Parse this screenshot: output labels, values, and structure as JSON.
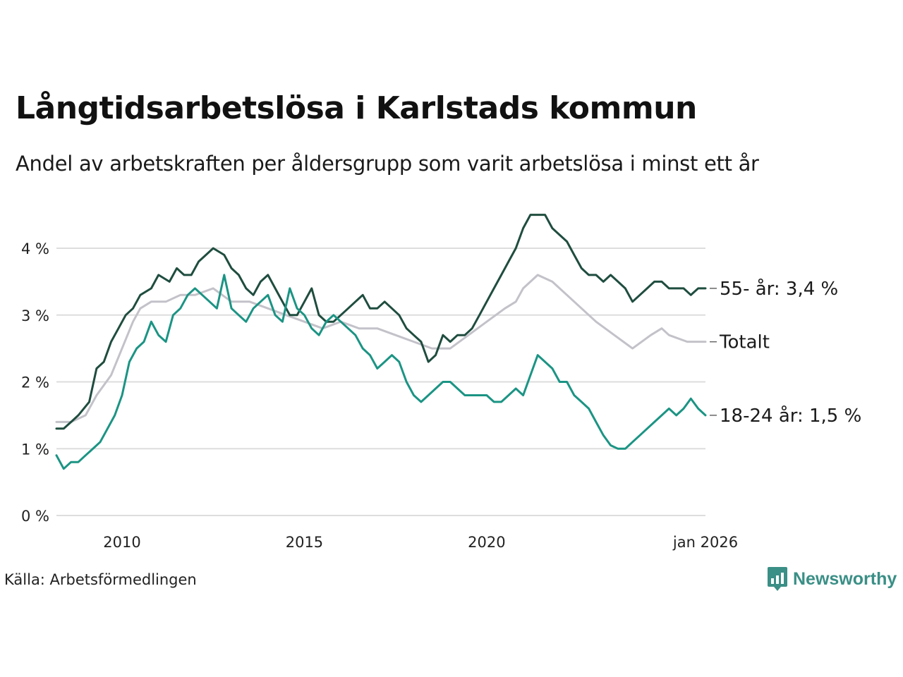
{
  "header": {
    "title": "Långtidsarbetslösa i Karlstads kommun",
    "subtitle": "Andel av arbetskraften per åldersgrupp som varit arbetslösa i minst ett år"
  },
  "footer": {
    "source": "Källa: Arbetsförmedlingen",
    "brand": "Newsworthy"
  },
  "colors": {
    "senior": "#1f4d3f",
    "total": "#c3c2c9",
    "youth": "#1b9484",
    "grid": "#dddddd",
    "brand": "#3a8f86"
  },
  "chart_data": {
    "type": "line",
    "title": "Långtidsarbetslösa i Karlstads kommun",
    "subtitle": "Andel av arbetskraften per åldersgrupp som varit arbetslösa i minst ett år",
    "xlabel": "",
    "ylabel": "",
    "ylim": [
      0,
      4.6
    ],
    "xlim": [
      2008.2,
      2026.0
    ],
    "grid": true,
    "yticks": [
      {
        "value": 0,
        "label": "0 %"
      },
      {
        "value": 1,
        "label": "1 %"
      },
      {
        "value": 2,
        "label": "2 %"
      },
      {
        "value": 3,
        "label": "3 %"
      },
      {
        "value": 4,
        "label": "4 %"
      }
    ],
    "xticks": [
      {
        "value": 2010,
        "label": "2010"
      },
      {
        "value": 2015,
        "label": "2015"
      },
      {
        "value": 2020,
        "label": "2020"
      },
      {
        "value": 2026.0,
        "label": "jan 2026"
      }
    ],
    "series": [
      {
        "name": "Totalt",
        "label": "Totalt",
        "color_key": "total",
        "points": [
          [
            2008.2,
            1.4
          ],
          [
            2008.6,
            1.4
          ],
          [
            2009.0,
            1.5
          ],
          [
            2009.3,
            1.8
          ],
          [
            2009.7,
            2.1
          ],
          [
            2010.0,
            2.5
          ],
          [
            2010.3,
            2.9
          ],
          [
            2010.5,
            3.1
          ],
          [
            2010.8,
            3.2
          ],
          [
            2011.2,
            3.2
          ],
          [
            2011.6,
            3.3
          ],
          [
            2012.0,
            3.3
          ],
          [
            2012.5,
            3.4
          ],
          [
            2013.0,
            3.2
          ],
          [
            2013.5,
            3.2
          ],
          [
            2014.0,
            3.1
          ],
          [
            2014.5,
            3.0
          ],
          [
            2015.0,
            2.9
          ],
          [
            2015.5,
            2.8
          ],
          [
            2016.0,
            2.9
          ],
          [
            2016.5,
            2.8
          ],
          [
            2017.0,
            2.8
          ],
          [
            2017.5,
            2.7
          ],
          [
            2018.0,
            2.6
          ],
          [
            2018.5,
            2.5
          ],
          [
            2019.0,
            2.5
          ],
          [
            2019.5,
            2.7
          ],
          [
            2020.0,
            2.9
          ],
          [
            2020.5,
            3.1
          ],
          [
            2020.8,
            3.2
          ],
          [
            2021.0,
            3.4
          ],
          [
            2021.4,
            3.6
          ],
          [
            2021.8,
            3.5
          ],
          [
            2022.2,
            3.3
          ],
          [
            2022.6,
            3.1
          ],
          [
            2023.0,
            2.9
          ],
          [
            2023.5,
            2.7
          ],
          [
            2024.0,
            2.5
          ],
          [
            2024.5,
            2.7
          ],
          [
            2024.8,
            2.8
          ],
          [
            2025.0,
            2.7
          ],
          [
            2025.5,
            2.6
          ],
          [
            2025.9,
            2.6
          ],
          [
            2026.0,
            2.6
          ]
        ]
      },
      {
        "name": "55- år",
        "label": "55- år: 3,4 %",
        "color_key": "senior",
        "points": [
          [
            2008.2,
            1.3
          ],
          [
            2008.4,
            1.3
          ],
          [
            2008.6,
            1.4
          ],
          [
            2008.8,
            1.5
          ],
          [
            2009.1,
            1.7
          ],
          [
            2009.3,
            2.2
          ],
          [
            2009.5,
            2.3
          ],
          [
            2009.7,
            2.6
          ],
          [
            2009.9,
            2.8
          ],
          [
            2010.1,
            3.0
          ],
          [
            2010.3,
            3.1
          ],
          [
            2010.5,
            3.3
          ],
          [
            2010.8,
            3.4
          ],
          [
            2011.0,
            3.6
          ],
          [
            2011.3,
            3.5
          ],
          [
            2011.5,
            3.7
          ],
          [
            2011.7,
            3.6
          ],
          [
            2011.9,
            3.6
          ],
          [
            2012.1,
            3.8
          ],
          [
            2012.3,
            3.9
          ],
          [
            2012.5,
            4.0
          ],
          [
            2012.8,
            3.9
          ],
          [
            2013.0,
            3.7
          ],
          [
            2013.2,
            3.6
          ],
          [
            2013.4,
            3.4
          ],
          [
            2013.6,
            3.3
          ],
          [
            2013.8,
            3.5
          ],
          [
            2014.0,
            3.6
          ],
          [
            2014.2,
            3.4
          ],
          [
            2014.4,
            3.2
          ],
          [
            2014.6,
            3.0
          ],
          [
            2014.8,
            3.0
          ],
          [
            2015.0,
            3.2
          ],
          [
            2015.2,
            3.4
          ],
          [
            2015.4,
            3.0
          ],
          [
            2015.6,
            2.9
          ],
          [
            2015.8,
            2.9
          ],
          [
            2016.0,
            3.0
          ],
          [
            2016.2,
            3.1
          ],
          [
            2016.4,
            3.2
          ],
          [
            2016.6,
            3.3
          ],
          [
            2016.8,
            3.1
          ],
          [
            2017.0,
            3.1
          ],
          [
            2017.2,
            3.2
          ],
          [
            2017.4,
            3.1
          ],
          [
            2017.6,
            3.0
          ],
          [
            2017.8,
            2.8
          ],
          [
            2018.0,
            2.7
          ],
          [
            2018.2,
            2.6
          ],
          [
            2018.4,
            2.3
          ],
          [
            2018.6,
            2.4
          ],
          [
            2018.8,
            2.7
          ],
          [
            2019.0,
            2.6
          ],
          [
            2019.2,
            2.7
          ],
          [
            2019.4,
            2.7
          ],
          [
            2019.6,
            2.8
          ],
          [
            2019.8,
            3.0
          ],
          [
            2020.0,
            3.2
          ],
          [
            2020.2,
            3.4
          ],
          [
            2020.4,
            3.6
          ],
          [
            2020.6,
            3.8
          ],
          [
            2020.8,
            4.0
          ],
          [
            2021.0,
            4.3
          ],
          [
            2021.2,
            4.5
          ],
          [
            2021.4,
            4.5
          ],
          [
            2021.6,
            4.5
          ],
          [
            2021.8,
            4.3
          ],
          [
            2022.0,
            4.2
          ],
          [
            2022.2,
            4.1
          ],
          [
            2022.4,
            3.9
          ],
          [
            2022.6,
            3.7
          ],
          [
            2022.8,
            3.6
          ],
          [
            2023.0,
            3.6
          ],
          [
            2023.2,
            3.5
          ],
          [
            2023.4,
            3.6
          ],
          [
            2023.6,
            3.5
          ],
          [
            2023.8,
            3.4
          ],
          [
            2024.0,
            3.2
          ],
          [
            2024.2,
            3.3
          ],
          [
            2024.4,
            3.4
          ],
          [
            2024.6,
            3.5
          ],
          [
            2024.8,
            3.5
          ],
          [
            2025.0,
            3.4
          ],
          [
            2025.2,
            3.4
          ],
          [
            2025.4,
            3.4
          ],
          [
            2025.6,
            3.3
          ],
          [
            2025.8,
            3.4
          ],
          [
            2026.0,
            3.4
          ]
        ]
      },
      {
        "name": "18-24 år",
        "label": "18-24 år: 1,5 %",
        "color_key": "youth",
        "points": [
          [
            2008.2,
            0.9
          ],
          [
            2008.4,
            0.7
          ],
          [
            2008.6,
            0.8
          ],
          [
            2008.8,
            0.8
          ],
          [
            2009.0,
            0.9
          ],
          [
            2009.2,
            1.0
          ],
          [
            2009.4,
            1.1
          ],
          [
            2009.6,
            1.3
          ],
          [
            2009.8,
            1.5
          ],
          [
            2010.0,
            1.8
          ],
          [
            2010.2,
            2.3
          ],
          [
            2010.4,
            2.5
          ],
          [
            2010.6,
            2.6
          ],
          [
            2010.8,
            2.9
          ],
          [
            2011.0,
            2.7
          ],
          [
            2011.2,
            2.6
          ],
          [
            2011.4,
            3.0
          ],
          [
            2011.6,
            3.1
          ],
          [
            2011.8,
            3.3
          ],
          [
            2012.0,
            3.4
          ],
          [
            2012.2,
            3.3
          ],
          [
            2012.4,
            3.2
          ],
          [
            2012.6,
            3.1
          ],
          [
            2012.8,
            3.6
          ],
          [
            2013.0,
            3.1
          ],
          [
            2013.2,
            3.0
          ],
          [
            2013.4,
            2.9
          ],
          [
            2013.6,
            3.1
          ],
          [
            2013.8,
            3.2
          ],
          [
            2014.0,
            3.3
          ],
          [
            2014.2,
            3.0
          ],
          [
            2014.4,
            2.9
          ],
          [
            2014.6,
            3.4
          ],
          [
            2014.8,
            3.1
          ],
          [
            2015.0,
            3.0
          ],
          [
            2015.2,
            2.8
          ],
          [
            2015.4,
            2.7
          ],
          [
            2015.6,
            2.9
          ],
          [
            2015.8,
            3.0
          ],
          [
            2016.0,
            2.9
          ],
          [
            2016.2,
            2.8
          ],
          [
            2016.4,
            2.7
          ],
          [
            2016.6,
            2.5
          ],
          [
            2016.8,
            2.4
          ],
          [
            2017.0,
            2.2
          ],
          [
            2017.2,
            2.3
          ],
          [
            2017.4,
            2.4
          ],
          [
            2017.6,
            2.3
          ],
          [
            2017.8,
            2.0
          ],
          [
            2018.0,
            1.8
          ],
          [
            2018.2,
            1.7
          ],
          [
            2018.4,
            1.8
          ],
          [
            2018.6,
            1.9
          ],
          [
            2018.8,
            2.0
          ],
          [
            2019.0,
            2.0
          ],
          [
            2019.2,
            1.9
          ],
          [
            2019.4,
            1.8
          ],
          [
            2019.6,
            1.8
          ],
          [
            2019.8,
            1.8
          ],
          [
            2020.0,
            1.8
          ],
          [
            2020.2,
            1.7
          ],
          [
            2020.4,
            1.7
          ],
          [
            2020.6,
            1.8
          ],
          [
            2020.8,
            1.9
          ],
          [
            2021.0,
            1.8
          ],
          [
            2021.2,
            2.1
          ],
          [
            2021.4,
            2.4
          ],
          [
            2021.6,
            2.3
          ],
          [
            2021.8,
            2.2
          ],
          [
            2022.0,
            2.0
          ],
          [
            2022.2,
            2.0
          ],
          [
            2022.4,
            1.8
          ],
          [
            2022.6,
            1.7
          ],
          [
            2022.8,
            1.6
          ],
          [
            2023.0,
            1.4
          ],
          [
            2023.2,
            1.2
          ],
          [
            2023.4,
            1.05
          ],
          [
            2023.6,
            1.0
          ],
          [
            2023.8,
            1.0
          ],
          [
            2024.0,
            1.1
          ],
          [
            2024.2,
            1.2
          ],
          [
            2024.4,
            1.3
          ],
          [
            2024.6,
            1.4
          ],
          [
            2024.8,
            1.5
          ],
          [
            2025.0,
            1.6
          ],
          [
            2025.2,
            1.5
          ],
          [
            2025.4,
            1.6
          ],
          [
            2025.6,
            1.75
          ],
          [
            2025.8,
            1.6
          ],
          [
            2026.0,
            1.5
          ]
        ]
      }
    ]
  }
}
